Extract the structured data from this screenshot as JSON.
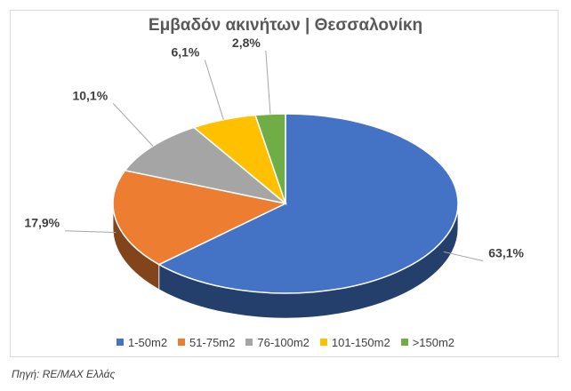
{
  "chart_data": {
    "type": "pie",
    "title": "Εμβαδόν ακινήτων | Θεσσαλονίκη",
    "categories": [
      "1-50m2",
      "51-75m2",
      "76-100m2",
      "101-150m2",
      ">150m2"
    ],
    "values": [
      63.1,
      17.9,
      10.1,
      6.1,
      2.8
    ],
    "labels": [
      "63,1%",
      "17,9%",
      "10,1%",
      "6,1%",
      "2,8%"
    ],
    "colors": [
      "#4472C4",
      "#ED7D31",
      "#A5A5A5",
      "#FFC000",
      "#70AD47"
    ],
    "legend": "bottom",
    "style": "3d-pie"
  },
  "source": "Πηγή: RE/MAX Ελλάς"
}
